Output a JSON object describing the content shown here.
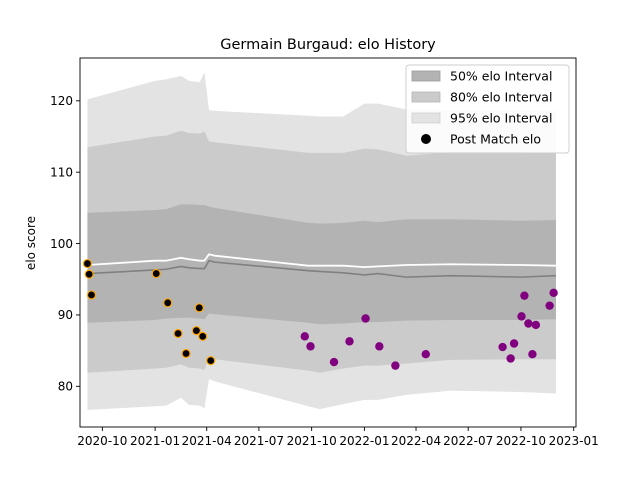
{
  "chart_data": {
    "type": "line",
    "title": "Germain Burgaud: elo History",
    "xlabel": "",
    "ylabel": "elo score",
    "ylim": [
      74.3,
      126.0
    ],
    "xlim": [
      "2020-08-23",
      "2023-01-05"
    ],
    "y_ticks": [
      80,
      90,
      100,
      110,
      120
    ],
    "x_ticks": [
      {
        "date": "2020-10-01",
        "label": "2020-10"
      },
      {
        "date": "2021-01-01",
        "label": "2021-01"
      },
      {
        "date": "2021-04-01",
        "label": "2021-04"
      },
      {
        "date": "2021-07-01",
        "label": "2021-07"
      },
      {
        "date": "2021-10-01",
        "label": "2021-10"
      },
      {
        "date": "2022-01-01",
        "label": "2022-01"
      },
      {
        "date": "2022-04-01",
        "label": "2022-04"
      },
      {
        "date": "2022-07-01",
        "label": "2022-07"
      },
      {
        "date": "2022-10-01",
        "label": "2022-10"
      },
      {
        "date": "2023-01-01",
        "label": "2023-01"
      }
    ],
    "grid": false,
    "legend_position": "top-right",
    "legend": [
      {
        "label": "50% elo Interval",
        "swatch": "band50"
      },
      {
        "label": "80% elo Interval",
        "swatch": "band80"
      },
      {
        "label": "95% elo Interval",
        "swatch": "band95"
      },
      {
        "label": "Post Match elo",
        "swatch": "marker"
      }
    ],
    "colors": {
      "band95": "#e3e3e3",
      "band80": "#cbcbcb",
      "band50": "#b3b3b3",
      "mean_line": "#ffffff",
      "median_line": "#808080",
      "marker_early": "#000000",
      "marker_early_edge": "#ffa500",
      "marker_late": "#800080",
      "legend_marker": "#000000"
    },
    "bands": {
      "x": [
        "2020-09-05",
        "2021-01-01",
        "2021-01-20",
        "2021-02-15",
        "2021-03-01",
        "2021-03-20",
        "2021-03-28",
        "2021-04-05",
        "2021-04-15",
        "2021-09-25",
        "2021-10-15",
        "2021-11-25",
        "2022-01-01",
        "2022-01-25",
        "2022-03-15",
        "2022-06-01",
        "2022-10-01",
        "2022-12-01"
      ],
      "lo95": [
        76.7,
        77.2,
        77.3,
        78.4,
        77.4,
        77.3,
        76.9,
        81.0,
        80.7,
        77.2,
        76.8,
        77.5,
        78.1,
        78.1,
        78.8,
        79.4,
        79.2,
        79.0
      ],
      "lo80": [
        81.9,
        82.5,
        82.6,
        83.1,
        82.6,
        82.5,
        82.3,
        84.1,
        83.8,
        82.2,
        81.9,
        82.5,
        82.9,
        82.9,
        83.2,
        83.7,
        83.8,
        83.8
      ],
      "lo50": [
        88.9,
        89.3,
        89.5,
        89.6,
        89.6,
        89.5,
        89.4,
        90.2,
        90.1,
        88.9,
        88.7,
        88.8,
        89.0,
        89.0,
        89.2,
        89.3,
        89.3,
        89.4
      ],
      "hi50": [
        104.3,
        104.7,
        104.8,
        105.5,
        105.5,
        105.4,
        105.4,
        105.2,
        105.0,
        102.9,
        102.8,
        102.9,
        103.2,
        103.0,
        103.4,
        103.4,
        103.2,
        103.3
      ],
      "hi80": [
        113.5,
        115.0,
        115.1,
        115.8,
        115.5,
        115.4,
        115.7,
        114.3,
        114.2,
        112.7,
        112.7,
        112.7,
        113.3,
        113.2,
        112.3,
        112.8,
        112.8,
        112.7
      ],
      "hi95": [
        120.2,
        122.8,
        123.0,
        123.5,
        122.8,
        122.6,
        124.0,
        118.7,
        118.6,
        117.9,
        117.8,
        117.8,
        119.6,
        119.6,
        118.8,
        118.7,
        118.7,
        118.6
      ],
      "mean": [
        97.0,
        97.6,
        97.6,
        98.0,
        97.8,
        97.6,
        97.6,
        98.5,
        98.3,
        96.9,
        96.9,
        96.9,
        96.7,
        96.8,
        97.0,
        97.1,
        97.0,
        96.9
      ],
      "median": [
        95.8,
        96.3,
        96.4,
        96.8,
        96.6,
        96.5,
        96.5,
        97.6,
        97.4,
        96.2,
        96.1,
        95.9,
        95.6,
        95.8,
        95.3,
        95.5,
        95.3,
        95.5
      ]
    },
    "series": [
      {
        "marker": "early",
        "points": [
          {
            "x": "2020-09-05",
            "y": 97.2
          },
          {
            "x": "2020-09-08",
            "y": 95.7
          },
          {
            "x": "2020-09-12",
            "y": 92.8
          },
          {
            "x": "2021-01-03",
            "y": 95.8
          },
          {
            "x": "2021-01-23",
            "y": 91.7
          },
          {
            "x": "2021-02-10",
            "y": 87.4
          },
          {
            "x": "2021-02-24",
            "y": 84.6
          },
          {
            "x": "2021-03-14",
            "y": 87.8
          },
          {
            "x": "2021-03-19",
            "y": 91.0
          },
          {
            "x": "2021-03-25",
            "y": 87.0
          },
          {
            "x": "2021-04-08",
            "y": 83.6
          }
        ]
      },
      {
        "marker": "late",
        "points": [
          {
            "x": "2021-09-19",
            "y": 87.0
          },
          {
            "x": "2021-09-29",
            "y": 85.6
          },
          {
            "x": "2021-11-09",
            "y": 83.4
          },
          {
            "x": "2021-12-06",
            "y": 86.3
          },
          {
            "x": "2022-01-03",
            "y": 89.5
          },
          {
            "x": "2022-01-27",
            "y": 85.6
          },
          {
            "x": "2022-02-24",
            "y": 82.9
          },
          {
            "x": "2022-04-18",
            "y": 84.5
          },
          {
            "x": "2022-08-30",
            "y": 85.5
          },
          {
            "x": "2022-09-13",
            "y": 83.9
          },
          {
            "x": "2022-09-19",
            "y": 86.0
          },
          {
            "x": "2022-10-02",
            "y": 89.8
          },
          {
            "x": "2022-10-07",
            "y": 92.7
          },
          {
            "x": "2022-10-14",
            "y": 88.8
          },
          {
            "x": "2022-10-21",
            "y": 84.5
          },
          {
            "x": "2022-10-27",
            "y": 88.6
          },
          {
            "x": "2022-11-20",
            "y": 91.3
          },
          {
            "x": "2022-11-27",
            "y": 93.1
          }
        ]
      }
    ]
  }
}
